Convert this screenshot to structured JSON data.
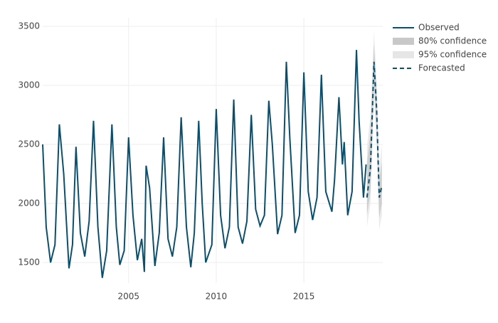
{
  "chart_data": {
    "type": "forecast",
    "xlim": [
      2000.1,
      2019.5
    ],
    "xticks": [
      2005,
      2010,
      2015
    ],
    "ylim": [
      1325,
      3572
    ],
    "yticks": [
      1500,
      2000,
      2500,
      3000,
      3500
    ],
    "grid": true,
    "series": [
      {
        "name": "Observed",
        "color": "#0b4f6c",
        "kind": "line",
        "x": [
          2000.1,
          2000.3,
          2000.55,
          2000.8,
          2001.05,
          2001.3,
          2001.6,
          2001.8,
          2002.0,
          2002.25,
          2002.5,
          2002.75,
          2003.0,
          2003.25,
          2003.5,
          2003.75,
          2004.05,
          2004.3,
          2004.5,
          2004.75,
          2005.0,
          2005.25,
          2005.5,
          2005.75,
          2005.9,
          2006.0,
          2006.2,
          2006.5,
          2006.75,
          2007.0,
          2007.25,
          2007.5,
          2007.75,
          2008.0,
          2008.3,
          2008.55,
          2008.75,
          2009.0,
          2009.2,
          2009.4,
          2009.75,
          2010.0,
          2010.25,
          2010.5,
          2010.75,
          2011.0,
          2011.25,
          2011.5,
          2011.75,
          2012.0,
          2012.25,
          2012.5,
          2012.75,
          2013.0,
          2013.2,
          2013.5,
          2013.75,
          2014.0,
          2014.2,
          2014.5,
          2014.75,
          2015.0,
          2015.25,
          2015.5,
          2015.75,
          2016.0,
          2016.25,
          2016.6,
          2016.75,
          2017.0,
          2017.2,
          2017.3,
          2017.5,
          2017.75,
          2018.0,
          2018.15,
          2018.4,
          2018.55
        ],
        "values": [
          2500,
          1800,
          1500,
          1650,
          2670,
          2250,
          1450,
          1650,
          2480,
          1750,
          1550,
          1850,
          2700,
          1800,
          1370,
          1600,
          2670,
          1800,
          1480,
          1600,
          2560,
          1900,
          1520,
          1700,
          1420,
          2320,
          2130,
          1470,
          1750,
          2560,
          1700,
          1550,
          1800,
          2730,
          1800,
          1460,
          1750,
          2700,
          2000,
          1500,
          1650,
          2800,
          1900,
          1620,
          1800,
          2880,
          1800,
          1660,
          1850,
          2750,
          1950,
          1810,
          1900,
          2870,
          2500,
          1740,
          1900,
          3200,
          2550,
          1750,
          1900,
          3110,
          2100,
          1860,
          2050,
          3090,
          2100,
          1930,
          2200,
          2900,
          2330,
          2520,
          1900,
          2100,
          3300,
          2700,
          2050,
          2330
        ]
      },
      {
        "name": "80% confidence",
        "color": "#c8c8c8",
        "kind": "band",
        "x": [
          2018.6,
          2018.8,
          2019.0,
          2019.15,
          2019.3,
          2019.45
        ],
        "lower": [
          1900,
          2100,
          3020,
          2620,
          1880,
          2000
        ],
        "upper": [
          2350,
          2600,
          3350,
          2950,
          2200,
          2350
        ]
      },
      {
        "name": "95% confidence",
        "color": "#e6e6e6",
        "kind": "band",
        "x": [
          2018.6,
          2018.8,
          2019.0,
          2019.15,
          2019.3,
          2019.45
        ],
        "lower": [
          1800,
          2000,
          2900,
          2500,
          1780,
          1900
        ],
        "upper": [
          2480,
          2750,
          3460,
          3050,
          2300,
          2500
        ]
      },
      {
        "name": "Forecasted",
        "color": "#0b4f6c",
        "kind": "dash",
        "x": [
          2018.6,
          2018.8,
          2019.0,
          2019.15,
          2019.3,
          2019.45
        ],
        "values": [
          2050,
          2300,
          3200,
          2800,
          2050,
          2150
        ]
      }
    ]
  }
}
